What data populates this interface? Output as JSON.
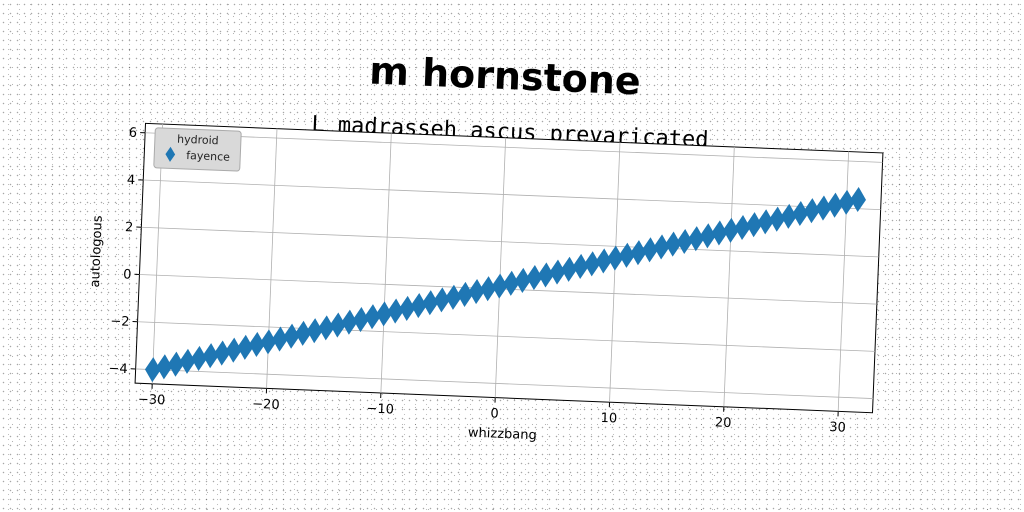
{
  "title": "m hornstone",
  "chart_data": {
    "type": "scatter",
    "title": "L madrasseh ascus prevaricated",
    "xlabel": "whizzbang",
    "ylabel": "autologous",
    "xlim": [
      -31.5,
      33
    ],
    "ylim": [
      -4.6,
      6.4
    ],
    "xticks": [
      -30,
      -20,
      -10,
      0,
      10,
      20,
      30
    ],
    "yticks": [
      -4,
      -2,
      0,
      2,
      4,
      6
    ],
    "xtick_labels": [
      "−30",
      "−20",
      "−10",
      "0",
      "10",
      "20",
      "30"
    ],
    "ytick_labels": [
      "−4",
      "−2",
      "0",
      "2",
      "4",
      "6"
    ],
    "grid": true,
    "marker": "thin-diamond",
    "legend": {
      "title": "hydroid",
      "placement": "top-left",
      "entries": [
        "fayence"
      ]
    },
    "series": [
      {
        "name": "fayence",
        "color": "#1f77b4",
        "x": [
          -30,
          -29,
          -28,
          -27,
          -26,
          -25,
          -24,
          -23,
          -22,
          -21,
          -20,
          -19,
          -18,
          -17,
          -16,
          -15,
          -14,
          -13,
          -12,
          -11,
          -10,
          -9,
          -8,
          -7,
          -6,
          -5,
          -4,
          -3,
          -2,
          -1,
          0,
          1,
          2,
          3,
          4,
          5,
          6,
          7,
          8,
          9,
          10,
          11,
          12,
          13,
          14,
          15,
          16,
          17,
          18,
          19,
          20,
          21,
          22,
          23,
          24,
          25,
          26,
          27,
          28,
          29,
          30,
          31
        ],
        "y": [
          -4.0,
          -3.86,
          -3.73,
          -3.59,
          -3.45,
          -3.31,
          -3.18,
          -3.04,
          -2.9,
          -2.76,
          -2.63,
          -2.49,
          -2.35,
          -2.21,
          -2.08,
          -1.94,
          -1.8,
          -1.66,
          -1.53,
          -1.39,
          -1.25,
          -1.11,
          -0.98,
          -0.84,
          -0.7,
          -0.56,
          -0.43,
          -0.29,
          -0.15,
          -0.01,
          0.12,
          0.26,
          0.4,
          0.54,
          0.67,
          0.81,
          0.95,
          1.09,
          1.22,
          1.36,
          1.5,
          1.64,
          1.77,
          1.91,
          2.05,
          2.19,
          2.32,
          2.46,
          2.6,
          2.74,
          2.87,
          3.01,
          3.15,
          3.29,
          3.42,
          3.56,
          3.7,
          3.84,
          3.97,
          4.11,
          4.25,
          4.39
        ]
      }
    ]
  }
}
